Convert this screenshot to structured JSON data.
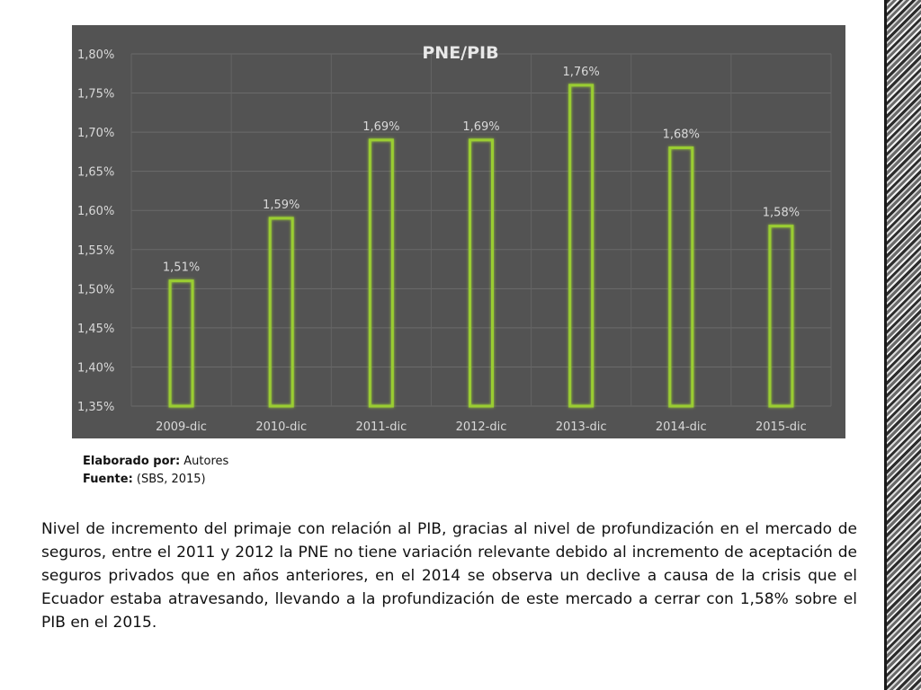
{
  "chart_data": {
    "type": "bar",
    "title": "PNE/PIB",
    "categories": [
      "2009-dic",
      "2010-dic",
      "2011-dic",
      "2012-dic",
      "2013-dic",
      "2014-dic",
      "2015-dic"
    ],
    "values": [
      1.51,
      1.59,
      1.69,
      1.69,
      1.76,
      1.68,
      1.58
    ],
    "data_labels": [
      "1,51%",
      "1,59%",
      "1,69%",
      "1,69%",
      "1,76%",
      "1,68%",
      "1,58%"
    ],
    "y_ticks": [
      "1,35%",
      "1,40%",
      "1,45%",
      "1,50%",
      "1,55%",
      "1,60%",
      "1,65%",
      "1,70%",
      "1,75%",
      "1,80%"
    ],
    "ylim": [
      1.35,
      1.8
    ],
    "grid": true,
    "bar_outline_color": "#9acd32",
    "background_color": "#535353"
  },
  "credits": {
    "elaborado_label": "Elaborado por:",
    "elaborado_value": " Autores",
    "fuente_label": "Fuente:",
    "fuente_value": " (SBS, 2015)"
  },
  "caption": "Nivel de incremento del primaje con relación al PIB, gracias al nivel de profundización en el mercado de seguros, entre el 2011 y 2012 la PNE no tiene variación relevante debido al incremento de aceptación de seguros privados que en años anteriores, en el 2014 se observa un declive a causa de la crisis que el Ecuador estaba atravesando, llevando a la profundización de este mercado a cerrar con 1,58% sobre el PIB en el 2015."
}
